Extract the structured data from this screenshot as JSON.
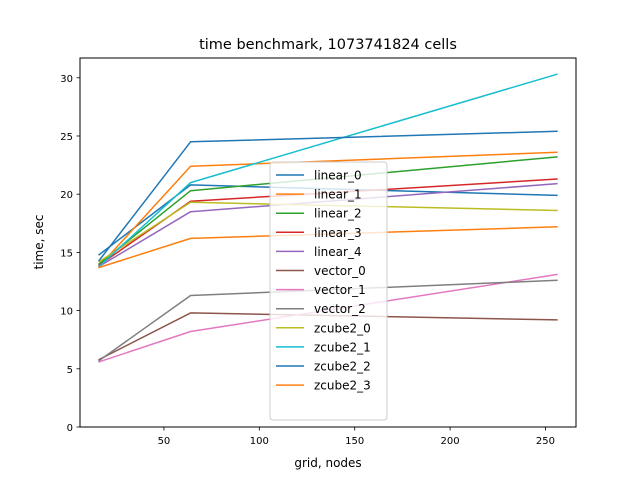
{
  "chart_data": {
    "type": "line",
    "title": "time benchmark, 1073741824 cells",
    "xlabel": "grid, nodes",
    "ylabel": "time, sec",
    "xlim": [
      6,
      266
    ],
    "ylim": [
      0,
      31.7
    ],
    "xticks": [
      50,
      100,
      150,
      200,
      250
    ],
    "yticks": [
      0,
      5,
      10,
      15,
      20,
      25,
      30
    ],
    "grid": false,
    "legend_placement": "center",
    "x": [
      16,
      64,
      256
    ],
    "series": [
      {
        "name": "linear_0",
        "color": "#1f77b4",
        "values": [
          14.8,
          20.8,
          19.9
        ]
      },
      {
        "name": "linear_1",
        "color": "#ff7f0e",
        "values": [
          13.8,
          22.4,
          23.6
        ]
      },
      {
        "name": "linear_2",
        "color": "#2ca02c",
        "values": [
          14.0,
          20.3,
          23.2
        ]
      },
      {
        "name": "linear_3",
        "color": "#d62728",
        "values": [
          13.9,
          19.4,
          21.3
        ]
      },
      {
        "name": "linear_4",
        "color": "#9467bd",
        "values": [
          13.8,
          18.5,
          20.9
        ]
      },
      {
        "name": "vector_0",
        "color": "#8c564b",
        "values": [
          5.8,
          9.8,
          9.2
        ]
      },
      {
        "name": "vector_1",
        "color": "#e377c2",
        "values": [
          5.6,
          8.2,
          13.1
        ]
      },
      {
        "name": "vector_2",
        "color": "#7f7f7f",
        "values": [
          5.7,
          11.3,
          12.6
        ]
      },
      {
        "name": "zcube2_0",
        "color": "#bcbd22",
        "values": [
          14.2,
          19.3,
          18.6
        ]
      },
      {
        "name": "zcube2_1",
        "color": "#17becf",
        "values": [
          13.8,
          21.0,
          30.3
        ]
      },
      {
        "name": "zcube2_2",
        "color": "#1f77b4",
        "values": [
          14.3,
          24.5,
          25.4
        ]
      },
      {
        "name": "zcube2_3",
        "color": "#ff7f0e",
        "values": [
          13.7,
          16.2,
          17.2
        ]
      }
    ]
  }
}
